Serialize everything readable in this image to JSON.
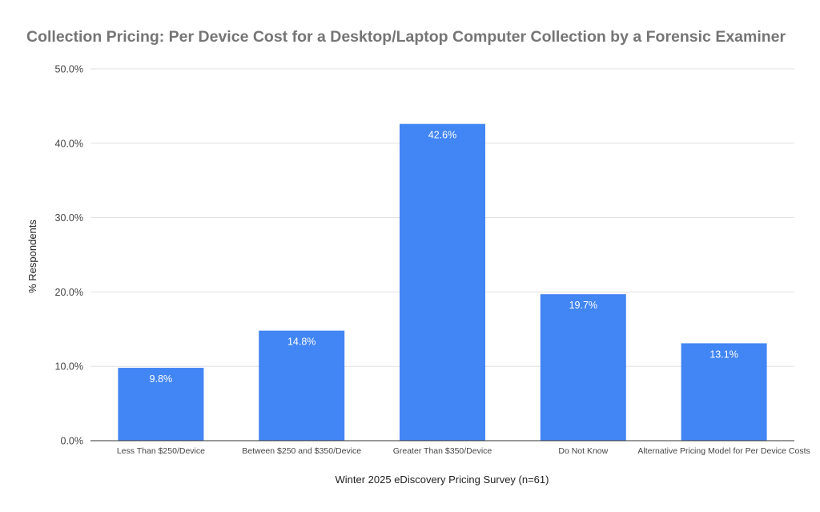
{
  "chart_data": {
    "type": "bar",
    "title": "Collection Pricing: Per Device Cost for a Desktop/Laptop Computer Collection by a Forensic Examiner",
    "xlabel": "Winter 2025 eDiscovery Pricing Survey (n=61)",
    "ylabel": "% Respondents",
    "ylim": [
      0,
      50
    ],
    "yticks": [
      "0.0%",
      "10.0%",
      "20.0%",
      "30.0%",
      "40.0%",
      "50.0%"
    ],
    "ytick_values": [
      0,
      10,
      20,
      30,
      40,
      50
    ],
    "grid": true,
    "legend": "none",
    "categories": [
      "Less Than $250/Device",
      "Between $250 and $350/Device",
      "Greater Than $350/Device",
      "Do Not Know",
      "Alternative Pricing Model for Per Device Costs"
    ],
    "values": [
      9.8,
      14.8,
      42.6,
      19.7,
      13.1
    ],
    "data_labels": [
      "9.8%",
      "14.8%",
      "42.6%",
      "19.7%",
      "13.1%"
    ],
    "colors": {
      "bar": "#4285f4",
      "title": "#757575",
      "axis_text": "#444444",
      "grid": "#e0e0e0",
      "baseline": "#333333",
      "data_label": "#ffffff"
    }
  }
}
